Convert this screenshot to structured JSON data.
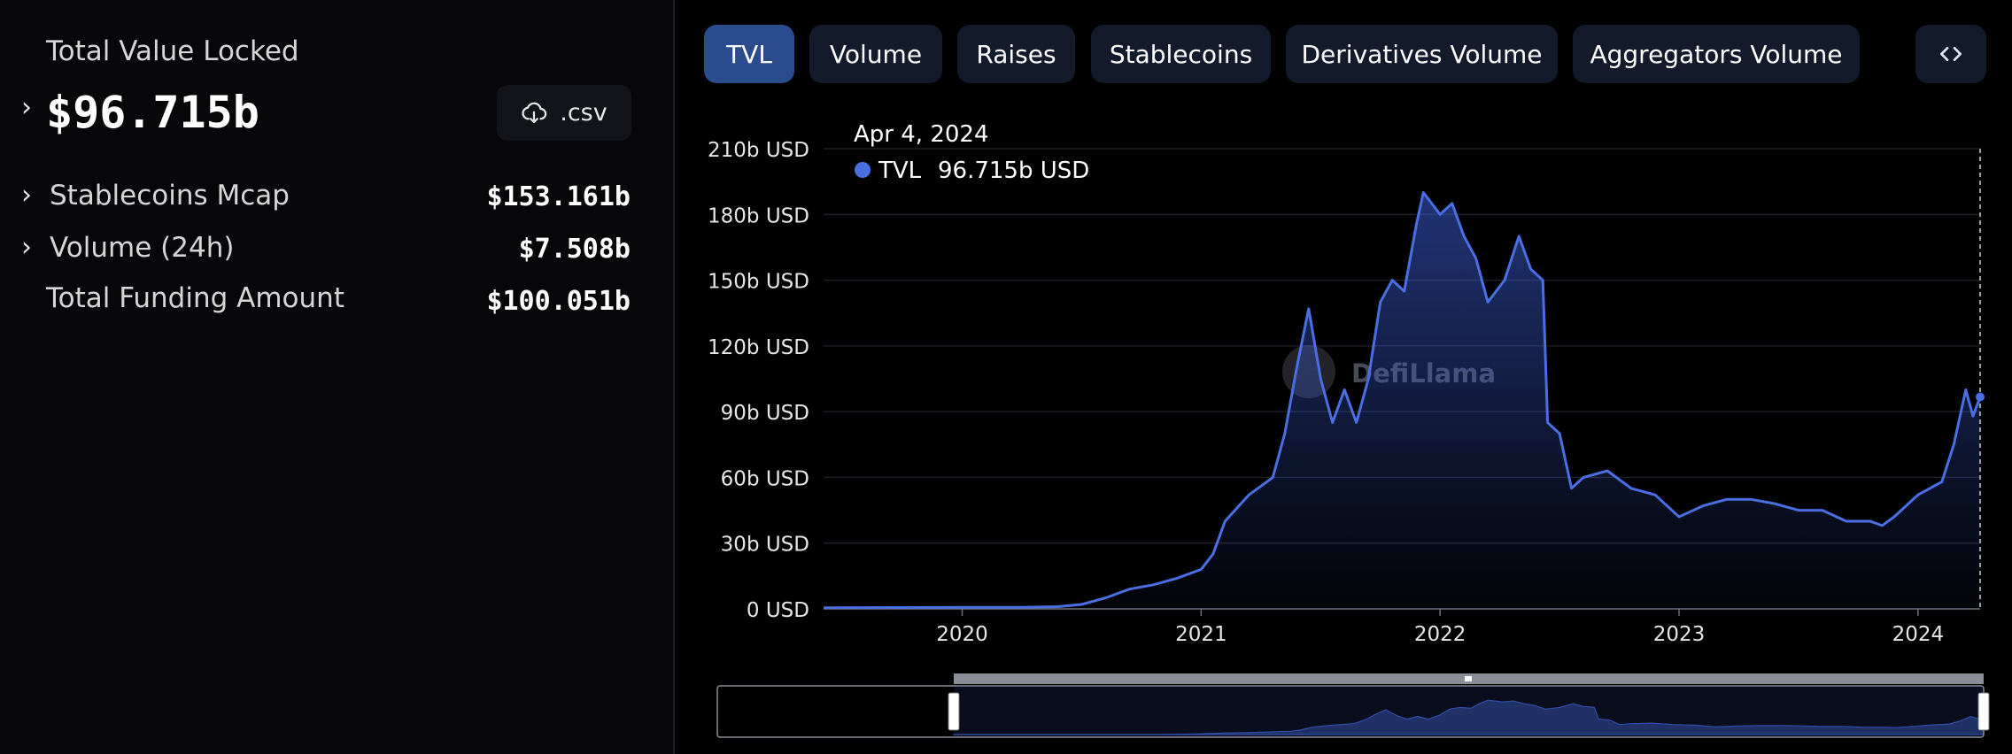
{
  "summary": {
    "tvl_label": "Total Value Locked",
    "tvl_value": "$96.715b",
    "csv_button": ".csv",
    "rows": [
      {
        "label": "Stablecoins Mcap",
        "value": "$153.161b"
      },
      {
        "label": "Volume (24h)",
        "value": "$7.508b"
      },
      {
        "label": "Total Funding Amount",
        "value": "$100.051b"
      }
    ]
  },
  "tabs": [
    "TVL",
    "Volume",
    "Raises",
    "Stablecoins",
    "Derivatives Volume",
    "Aggregators Volume"
  ],
  "chart_data": {
    "type": "line",
    "watermark": "DefiLlama",
    "x": [
      2019.42,
      2019.75,
      2020.0,
      2020.25,
      2020.4,
      2020.5,
      2020.6,
      2020.7,
      2020.8,
      2020.9,
      2021.0,
      2021.05,
      2021.1,
      2021.2,
      2021.3,
      2021.35,
      2021.4,
      2021.45,
      2021.5,
      2021.55,
      2021.6,
      2021.65,
      2021.7,
      2021.75,
      2021.8,
      2021.85,
      2021.9,
      2021.93,
      2022.0,
      2022.05,
      2022.1,
      2022.15,
      2022.2,
      2022.27,
      2022.33,
      2022.38,
      2022.43,
      2022.45,
      2022.5,
      2022.55,
      2022.6,
      2022.7,
      2022.8,
      2022.9,
      2023.0,
      2023.1,
      2023.2,
      2023.3,
      2023.4,
      2023.5,
      2023.6,
      2023.7,
      2023.8,
      2023.85,
      2023.9,
      2024.0,
      2024.1,
      2024.15,
      2024.2,
      2024.23,
      2024.26
    ],
    "series": [
      {
        "name": "TVL",
        "color": "#4a6fe3",
        "values": [
          0.5,
          0.6,
          0.7,
          0.7,
          1.0,
          2,
          5,
          9,
          11,
          14,
          18,
          25,
          40,
          52,
          60,
          80,
          110,
          137,
          105,
          85,
          100,
          85,
          105,
          140,
          150,
          145,
          175,
          190,
          180,
          185,
          170,
          160,
          140,
          150,
          170,
          155,
          150,
          85,
          80,
          55,
          60,
          63,
          55,
          52,
          42,
          47,
          50,
          50,
          48,
          45,
          45,
          40,
          40,
          38,
          42,
          52,
          58,
          75,
          100,
          88,
          96.715
        ]
      }
    ],
    "xlim": [
      2019.42,
      2024.26
    ],
    "xticks": [
      2020,
      2021,
      2022,
      2023,
      2024
    ],
    "ylim": [
      0,
      210
    ],
    "yticks": [
      {
        "value": 0,
        "label": "0 USD"
      },
      {
        "value": 30,
        "label": "30b USD"
      },
      {
        "value": 60,
        "label": "60b USD"
      },
      {
        "value": 90,
        "label": "90b USD"
      },
      {
        "value": 120,
        "label": "120b USD"
      },
      {
        "value": 150,
        "label": "150b USD"
      },
      {
        "value": 180,
        "label": "180b USD"
      },
      {
        "value": 210,
        "label": "210b USD"
      }
    ],
    "grid": true,
    "tooltip": {
      "date": "Apr 4, 2024",
      "value": 96.715,
      "value_label": "96.715b USD"
    }
  }
}
